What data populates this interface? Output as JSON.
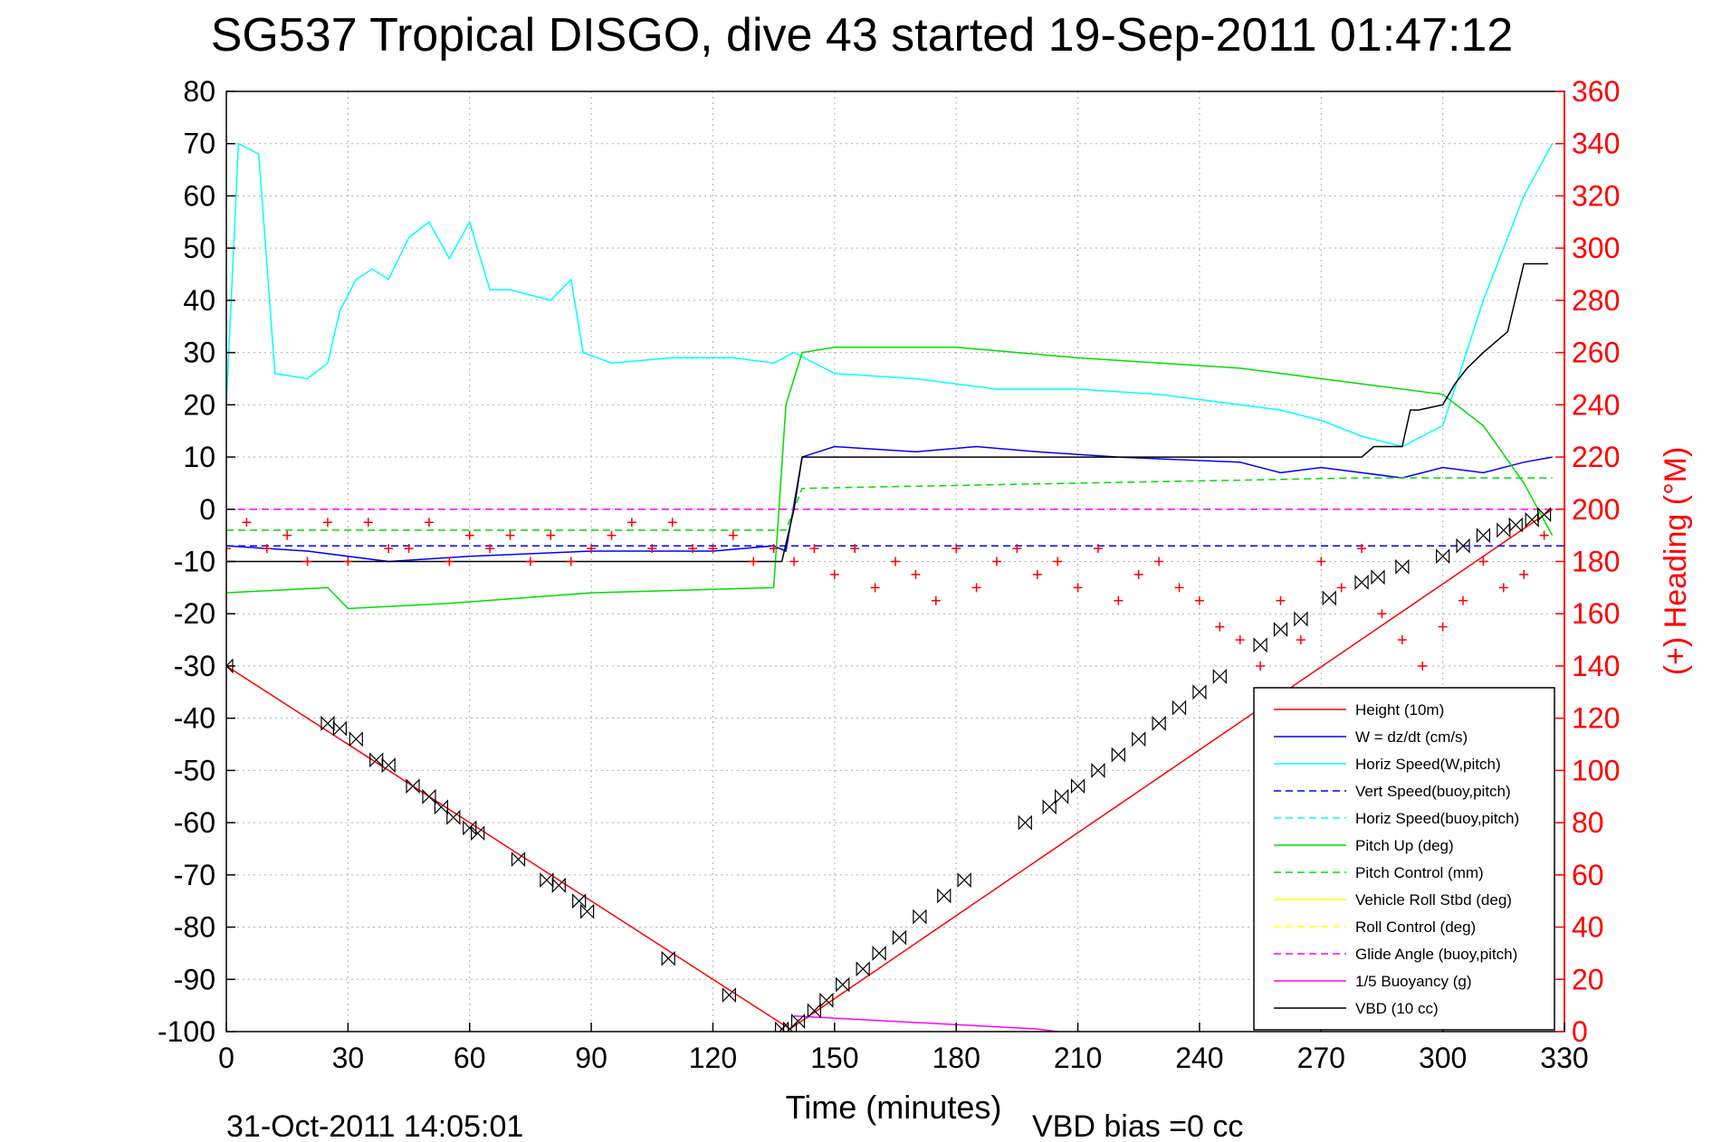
{
  "chart_data": {
    "type": "line",
    "title": "SG537 Tropical DISGO, dive 43 started 19-Sep-2011 01:47:12",
    "xlabel": "Time (minutes)",
    "ylabel_right": "(+) Heading (°M)",
    "footer_left": "31-Oct-2011 14:05:01",
    "footer_right": "VBD bias =0 cc",
    "xlim": [
      0,
      330
    ],
    "ylim": [
      -100,
      80
    ],
    "ylim_right": [
      0,
      360
    ],
    "x_ticks": [
      "0",
      "30",
      "60",
      "90",
      "120",
      "150",
      "180",
      "210",
      "240",
      "270",
      "300",
      "330"
    ],
    "y_ticks": [
      "80",
      "70",
      "60",
      "50",
      "40",
      "30",
      "20",
      "10",
      "0",
      "-10",
      "-20",
      "-30",
      "-40",
      "-50",
      "-60",
      "-70",
      "-80",
      "-90",
      "-100"
    ],
    "y_ticks_right": [
      "360",
      "340",
      "320",
      "300",
      "280",
      "260",
      "240",
      "220",
      "200",
      "180",
      "160",
      "140",
      "120",
      "100",
      "80",
      "60",
      "40",
      "20",
      "0"
    ],
    "grid": true,
    "legend_position": "bottom-right",
    "legend": [
      {
        "label": "Height (10m)",
        "color": "#ff0000",
        "dash": "solid"
      },
      {
        "label": "W = dz/dt (cm/s)",
        "color": "#0000ff",
        "dash": "solid"
      },
      {
        "label": "Horiz Speed(W,pitch)",
        "color": "#00ffff",
        "dash": "solid"
      },
      {
        "label": "Vert Speed(buoy,pitch)",
        "color": "#0000ff",
        "dash": "dashed"
      },
      {
        "label": "Horiz Speed(buoy,pitch)",
        "color": "#00ffff",
        "dash": "dashed"
      },
      {
        "label": "Pitch Up (deg)",
        "color": "#00dd00",
        "dash": "solid"
      },
      {
        "label": "Pitch Control (mm)",
        "color": "#00dd00",
        "dash": "dashed"
      },
      {
        "label": "Vehicle Roll Stbd (deg)",
        "color": "#ffff00",
        "dash": "solid"
      },
      {
        "label": "Roll Control (deg)",
        "color": "#ffff00",
        "dash": "dashed"
      },
      {
        "label": "Glide Angle (buoy,pitch)",
        "color": "#ff00ff",
        "dash": "dashed"
      },
      {
        "label": "1/5 Buoyancy (g)",
        "color": "#ff00ff",
        "dash": "solid"
      },
      {
        "label": "VBD (10 cc)",
        "color": "#000000",
        "dash": "solid"
      }
    ],
    "series": [
      {
        "name": "Height (10m)",
        "color": "#ff0000",
        "x": [
          0,
          139,
          327
        ],
        "y": [
          -30,
          -99.5,
          0
        ]
      },
      {
        "name": "W = dz/dt (cm/s)",
        "color": "#0000ff",
        "x": [
          0,
          20,
          40,
          60,
          90,
          120,
          135,
          138,
          142,
          150,
          170,
          185,
          200,
          220,
          250,
          260,
          270,
          280,
          290,
          300,
          310,
          320,
          327
        ],
        "y": [
          -7,
          -8,
          -10,
          -9,
          -8,
          -8,
          -7,
          -8,
          10,
          12,
          11,
          12,
          11,
          10,
          9,
          7,
          8,
          7,
          6,
          8,
          7,
          9,
          10
        ]
      },
      {
        "name": "Horiz Speed(W,pitch)",
        "color": "#00ffff",
        "x": [
          0,
          3,
          8,
          12,
          20,
          25,
          28,
          32,
          36,
          40,
          45,
          50,
          55,
          60,
          65,
          70,
          80,
          85,
          88,
          95,
          110,
          125,
          135,
          140,
          150,
          170,
          190,
          210,
          230,
          250,
          260,
          270,
          280,
          290,
          300,
          310,
          320,
          327
        ],
        "y": [
          20,
          70,
          68,
          26,
          25,
          28,
          38,
          44,
          46,
          44,
          52,
          55,
          48,
          55,
          42,
          42,
          40,
          44,
          30,
          28,
          29,
          29,
          28,
          30,
          26,
          25,
          23,
          23,
          22,
          20,
          19,
          17,
          14,
          12,
          16,
          40,
          60,
          70
        ]
      },
      {
        "name": "Vert Speed(buoy,pitch)",
        "color": "#0000ff",
        "x": [
          0,
          330
        ],
        "y": [
          -7,
          -7
        ]
      },
      {
        "name": "Pitch Up (deg)",
        "color": "#00dd00",
        "x": [
          0,
          25,
          30,
          55,
          90,
          135,
          138,
          142,
          150,
          180,
          210,
          250,
          280,
          300,
          310,
          320,
          327
        ],
        "y": [
          -16,
          -15,
          -19,
          -18,
          -16,
          -15,
          20,
          30,
          31,
          31,
          29,
          27,
          24,
          22,
          16,
          5,
          -5
        ]
      },
      {
        "name": "Pitch Control (mm)",
        "color": "#00dd00",
        "x": [
          0,
          138,
          142,
          210,
          280,
          320,
          327
        ],
        "y": [
          -4,
          -4,
          4,
          5,
          6,
          6,
          6
        ]
      },
      {
        "name": "Glide Angle (buoy,pitch)",
        "color": "#ff00ff",
        "x": [
          0,
          330
        ],
        "y": [
          0,
          0
        ]
      },
      {
        "name": "1/5 Buoyancy (g)",
        "color": "#ff00ff",
        "x": [
          140,
          200,
          205
        ],
        "y": [
          -97,
          -99.5,
          -100
        ]
      },
      {
        "name": "VBD (10 cc)",
        "color": "#000000",
        "x": [
          0,
          137,
          140,
          142,
          280,
          283,
          290,
          292,
          294,
          300,
          303,
          306,
          310,
          316,
          320,
          326
        ],
        "y": [
          -10,
          -10,
          0,
          10,
          10,
          12,
          12,
          19,
          19,
          20,
          24,
          27,
          30,
          34,
          47,
          47
        ]
      },
      {
        "name": "Heading",
        "color": "#ff0000",
        "x": [
          0,
          5,
          10,
          15,
          20,
          25,
          30,
          35,
          40,
          45,
          50,
          55,
          60,
          65,
          70,
          75,
          80,
          85,
          90,
          95,
          100,
          105,
          110,
          115,
          120,
          125,
          130,
          135,
          140,
          145,
          150,
          155,
          160,
          165,
          170,
          175,
          180,
          185,
          190,
          195,
          200,
          205,
          210,
          215,
          220,
          225,
          230,
          235,
          240,
          245,
          250,
          255,
          260,
          265,
          270,
          275,
          280,
          285,
          290,
          295,
          300,
          305,
          310,
          315,
          320,
          325
        ],
        "y": [
          185,
          195,
          185,
          190,
          180,
          195,
          180,
          195,
          185,
          185,
          195,
          180,
          190,
          185,
          190,
          180,
          190,
          180,
          185,
          190,
          195,
          185,
          195,
          185,
          185,
          190,
          180,
          185,
          180,
          185,
          175,
          185,
          170,
          180,
          175,
          165,
          185,
          170,
          180,
          185,
          175,
          180,
          170,
          185,
          165,
          175,
          180,
          170,
          165,
          155,
          150,
          140,
          165,
          150,
          180,
          170,
          185,
          160,
          150,
          140,
          155,
          165,
          180,
          170,
          175,
          190
        ]
      }
    ],
    "markers": {
      "name": "Height samples",
      "color": "#000000",
      "shape": "bowtie",
      "x": [
        0,
        25,
        28,
        32,
        37,
        40,
        46,
        50,
        53,
        56,
        60,
        62,
        72,
        79,
        82,
        87,
        89,
        109,
        124,
        137,
        139,
        141,
        145,
        148,
        152,
        157,
        161,
        166,
        171,
        177,
        182,
        197,
        203,
        206,
        210,
        215,
        220,
        225,
        230,
        235,
        240,
        245,
        255,
        260,
        265,
        272,
        280,
        284,
        290,
        300,
        305,
        310,
        315,
        318,
        322,
        325
      ],
      "y": [
        -30,
        -41,
        -42,
        -44,
        -48,
        -49,
        -53,
        -55,
        -57,
        -59,
        -61,
        -62,
        -67,
        -71,
        -72,
        -75,
        -77,
        -86,
        -93,
        -99.5,
        -99.5,
        -98,
        -96,
        -94,
        -91,
        -88,
        -85,
        -82,
        -78,
        -74,
        -71,
        -60,
        -57,
        -55,
        -53,
        -50,
        -47,
        -44,
        -41,
        -38,
        -35,
        -32,
        -26,
        -23,
        -21,
        -17,
        -14,
        -13,
        -11,
        -9,
        -7,
        -5,
        -4,
        -3,
        -2,
        -1
      ]
    }
  }
}
